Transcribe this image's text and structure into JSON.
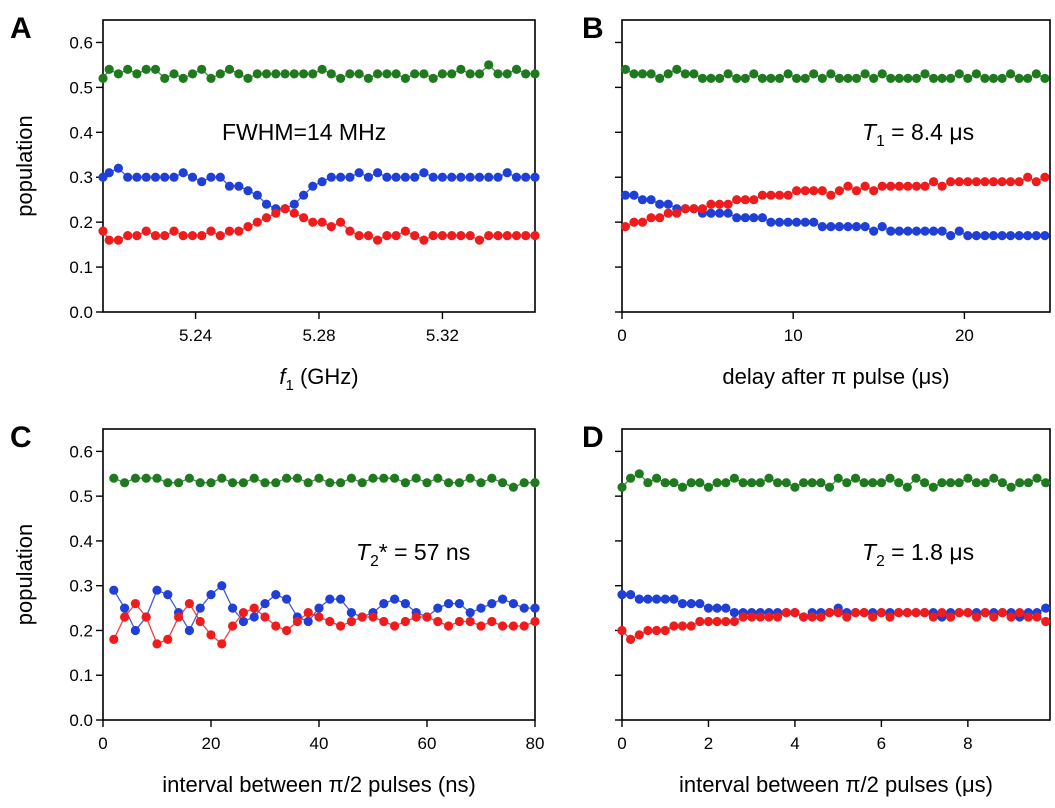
{
  "colors": {
    "green": "#1f7a1f",
    "blue": "#1f3fd6",
    "red": "#ee1c1c"
  },
  "chart_data": [
    {
      "type": "scatter",
      "panel_label": "A",
      "ylabel": "population",
      "xlabel_parts": [
        "f",
        "1",
        " (GHz)"
      ],
      "annotation_parts": [
        "FWHM=14 MHz"
      ],
      "xlim": [
        5.21,
        5.35
      ],
      "ylim": [
        0.0,
        0.65
      ],
      "xticks": [
        5.24,
        5.28,
        5.32
      ],
      "xtick_labels": [
        "5.24",
        "5.28",
        "5.32"
      ],
      "yticks": [
        0.0,
        0.1,
        0.2,
        0.3,
        0.4,
        0.5,
        0.6
      ],
      "ytick_labels": [
        "0.0",
        "0.1",
        "0.2",
        "0.3",
        "0.4",
        "0.5",
        "0.6"
      ],
      "show_y_tick_labels": true,
      "x": [
        5.21,
        5.212,
        5.215,
        5.218,
        5.221,
        5.224,
        5.227,
        5.23,
        5.233,
        5.236,
        5.239,
        5.242,
        5.245,
        5.248,
        5.251,
        5.254,
        5.257,
        5.26,
        5.263,
        5.266,
        5.269,
        5.272,
        5.275,
        5.278,
        5.281,
        5.284,
        5.287,
        5.29,
        5.293,
        5.296,
        5.299,
        5.302,
        5.305,
        5.308,
        5.311,
        5.314,
        5.317,
        5.32,
        5.323,
        5.326,
        5.329,
        5.332,
        5.335,
        5.338,
        5.341,
        5.344,
        5.347,
        5.35
      ],
      "series": [
        {
          "color_key": "green",
          "values": [
            0.52,
            0.54,
            0.53,
            0.54,
            0.53,
            0.54,
            0.54,
            0.52,
            0.53,
            0.52,
            0.53,
            0.54,
            0.52,
            0.53,
            0.54,
            0.53,
            0.52,
            0.53,
            0.53,
            0.53,
            0.53,
            0.53,
            0.53,
            0.53,
            0.54,
            0.53,
            0.52,
            0.53,
            0.53,
            0.52,
            0.53,
            0.53,
            0.53,
            0.52,
            0.53,
            0.53,
            0.52,
            0.53,
            0.53,
            0.54,
            0.53,
            0.53,
            0.55,
            0.53,
            0.53,
            0.54,
            0.53,
            0.53
          ]
        },
        {
          "color_key": "blue",
          "values": [
            0.3,
            0.31,
            0.32,
            0.3,
            0.3,
            0.3,
            0.3,
            0.3,
            0.3,
            0.31,
            0.3,
            0.29,
            0.3,
            0.3,
            0.28,
            0.28,
            0.27,
            0.26,
            0.24,
            0.23,
            0.23,
            0.24,
            0.26,
            0.28,
            0.29,
            0.3,
            0.3,
            0.3,
            0.31,
            0.3,
            0.31,
            0.3,
            0.3,
            0.3,
            0.3,
            0.31,
            0.3,
            0.3,
            0.3,
            0.3,
            0.3,
            0.3,
            0.3,
            0.3,
            0.31,
            0.3,
            0.3,
            0.3
          ]
        },
        {
          "color_key": "red",
          "values": [
            0.18,
            0.16,
            0.16,
            0.17,
            0.17,
            0.18,
            0.17,
            0.17,
            0.18,
            0.17,
            0.17,
            0.17,
            0.18,
            0.17,
            0.18,
            0.18,
            0.19,
            0.2,
            0.21,
            0.22,
            0.23,
            0.22,
            0.21,
            0.2,
            0.2,
            0.19,
            0.2,
            0.18,
            0.17,
            0.17,
            0.16,
            0.17,
            0.17,
            0.18,
            0.17,
            0.16,
            0.17,
            0.17,
            0.17,
            0.17,
            0.17,
            0.16,
            0.17,
            0.17,
            0.17,
            0.17,
            0.17,
            0.17
          ]
        }
      ]
    },
    {
      "type": "scatter",
      "panel_label": "B",
      "ylabel": "",
      "xlabel_parts": [
        "delay after π  pulse (μs)"
      ],
      "annotation_parts": [
        "T",
        "1",
        " = 8.4 μs"
      ],
      "xlim": [
        0,
        25
      ],
      "ylim": [
        0.0,
        0.65
      ],
      "xticks": [
        0,
        10,
        20
      ],
      "xtick_labels": [
        "0",
        "10",
        "20"
      ],
      "yticks": [
        0.0,
        0.1,
        0.2,
        0.3,
        0.4,
        0.5,
        0.6
      ],
      "ytick_labels": [],
      "show_y_tick_labels": false,
      "x": [
        0.2,
        0.7,
        1.2,
        1.7,
        2.2,
        2.7,
        3.2,
        3.7,
        4.2,
        4.7,
        5.2,
        5.7,
        6.2,
        6.7,
        7.2,
        7.7,
        8.2,
        8.7,
        9.2,
        9.7,
        10.2,
        10.7,
        11.2,
        11.7,
        12.2,
        12.7,
        13.2,
        13.7,
        14.2,
        14.7,
        15.2,
        15.7,
        16.2,
        16.7,
        17.2,
        17.7,
        18.2,
        18.7,
        19.2,
        19.7,
        20.2,
        20.7,
        21.2,
        21.7,
        22.2,
        22.7,
        23.2,
        23.7,
        24.2,
        24.7
      ],
      "series": [
        {
          "color_key": "green",
          "values": [
            0.54,
            0.53,
            0.53,
            0.53,
            0.52,
            0.53,
            0.54,
            0.53,
            0.53,
            0.52,
            0.52,
            0.52,
            0.53,
            0.52,
            0.52,
            0.53,
            0.52,
            0.52,
            0.52,
            0.53,
            0.52,
            0.52,
            0.53,
            0.52,
            0.53,
            0.52,
            0.52,
            0.52,
            0.53,
            0.52,
            0.53,
            0.52,
            0.52,
            0.52,
            0.52,
            0.53,
            0.52,
            0.52,
            0.52,
            0.53,
            0.52,
            0.53,
            0.52,
            0.52,
            0.52,
            0.53,
            0.52,
            0.52,
            0.53,
            0.52
          ]
        },
        {
          "color_key": "blue",
          "values": [
            0.26,
            0.26,
            0.25,
            0.25,
            0.24,
            0.24,
            0.23,
            0.23,
            0.23,
            0.22,
            0.22,
            0.22,
            0.22,
            0.21,
            0.21,
            0.21,
            0.21,
            0.2,
            0.2,
            0.2,
            0.2,
            0.2,
            0.2,
            0.19,
            0.19,
            0.19,
            0.19,
            0.19,
            0.19,
            0.18,
            0.19,
            0.18,
            0.18,
            0.18,
            0.18,
            0.18,
            0.18,
            0.18,
            0.17,
            0.18,
            0.17,
            0.17,
            0.17,
            0.17,
            0.17,
            0.17,
            0.17,
            0.17,
            0.17,
            0.17
          ]
        },
        {
          "color_key": "red",
          "values": [
            0.19,
            0.2,
            0.2,
            0.21,
            0.21,
            0.22,
            0.22,
            0.23,
            0.23,
            0.23,
            0.24,
            0.24,
            0.24,
            0.25,
            0.25,
            0.25,
            0.26,
            0.26,
            0.26,
            0.26,
            0.27,
            0.27,
            0.27,
            0.27,
            0.26,
            0.27,
            0.28,
            0.27,
            0.28,
            0.27,
            0.28,
            0.28,
            0.28,
            0.28,
            0.28,
            0.28,
            0.29,
            0.28,
            0.29,
            0.29,
            0.29,
            0.29,
            0.29,
            0.29,
            0.29,
            0.29,
            0.29,
            0.3,
            0.29,
            0.3
          ]
        }
      ]
    },
    {
      "type": "scatter",
      "panel_label": "C",
      "ylabel": "population",
      "xlabel_parts": [
        "interval between π/2 pulses (ns)"
      ],
      "annotation_parts": [
        "T",
        "2",
        "* = 57 ns"
      ],
      "xlim": [
        0,
        80
      ],
      "ylim": [
        0.0,
        0.65
      ],
      "xticks": [
        0,
        20,
        40,
        60,
        80
      ],
      "xtick_labels": [
        "0",
        "20",
        "40",
        "60",
        "80"
      ],
      "yticks": [
        0.0,
        0.1,
        0.2,
        0.3,
        0.4,
        0.5,
        0.6
      ],
      "ytick_labels": [
        "0.0",
        "0.1",
        "0.2",
        "0.3",
        "0.4",
        "0.5",
        "0.6"
      ],
      "show_y_tick_labels": true,
      "x": [
        2,
        4,
        6,
        8,
        10,
        12,
        14,
        16,
        18,
        20,
        22,
        24,
        26,
        28,
        30,
        32,
        34,
        36,
        38,
        40,
        42,
        44,
        46,
        48,
        50,
        52,
        54,
        56,
        58,
        60,
        62,
        64,
        66,
        68,
        70,
        72,
        74,
        76,
        78,
        80
      ],
      "series": [
        {
          "color_key": "green",
          "values": [
            0.54,
            0.53,
            0.54,
            0.54,
            0.54,
            0.53,
            0.53,
            0.54,
            0.53,
            0.53,
            0.54,
            0.53,
            0.53,
            0.54,
            0.53,
            0.53,
            0.54,
            0.54,
            0.53,
            0.54,
            0.53,
            0.53,
            0.54,
            0.53,
            0.54,
            0.54,
            0.54,
            0.53,
            0.54,
            0.53,
            0.54,
            0.53,
            0.53,
            0.54,
            0.53,
            0.54,
            0.53,
            0.52,
            0.53,
            0.53
          ]
        },
        {
          "color_key": "blue",
          "values": [
            0.29,
            0.25,
            0.2,
            0.23,
            0.29,
            0.28,
            0.24,
            0.2,
            0.25,
            0.28,
            0.3,
            0.25,
            0.22,
            0.23,
            0.26,
            0.28,
            0.27,
            0.23,
            0.22,
            0.25,
            0.27,
            0.27,
            0.24,
            0.23,
            0.24,
            0.26,
            0.27,
            0.26,
            0.24,
            0.23,
            0.25,
            0.26,
            0.26,
            0.24,
            0.25,
            0.26,
            0.27,
            0.26,
            0.25,
            0.25
          ]
        },
        {
          "color_key": "red",
          "values": [
            0.18,
            0.23,
            0.26,
            0.23,
            0.17,
            0.18,
            0.23,
            0.26,
            0.22,
            0.19,
            0.17,
            0.21,
            0.24,
            0.25,
            0.23,
            0.21,
            0.2,
            0.22,
            0.24,
            0.23,
            0.22,
            0.21,
            0.22,
            0.23,
            0.23,
            0.22,
            0.21,
            0.22,
            0.23,
            0.23,
            0.22,
            0.21,
            0.22,
            0.22,
            0.21,
            0.22,
            0.21,
            0.21,
            0.21,
            0.22
          ]
        }
      ]
    },
    {
      "type": "scatter",
      "panel_label": "D",
      "ylabel": "",
      "xlabel_parts": [
        "interval between π/2 pulses (μs)"
      ],
      "annotation_parts": [
        "T",
        "2",
        " = 1.8 μs"
      ],
      "xlim": [
        0,
        9.9
      ],
      "ylim": [
        0.0,
        0.65
      ],
      "xticks": [
        0,
        2,
        4,
        6,
        8
      ],
      "xtick_labels": [
        "0",
        "2",
        "4",
        "6",
        "8"
      ],
      "yticks": [
        0.0,
        0.1,
        0.2,
        0.3,
        0.4,
        0.5,
        0.6
      ],
      "ytick_labels": [],
      "show_y_tick_labels": false,
      "x": [
        0.0,
        0.2,
        0.4,
        0.6,
        0.8,
        1.0,
        1.2,
        1.4,
        1.6,
        1.8,
        2.0,
        2.2,
        2.4,
        2.6,
        2.8,
        3.0,
        3.2,
        3.4,
        3.6,
        3.8,
        4.0,
        4.2,
        4.4,
        4.6,
        4.8,
        5.0,
        5.2,
        5.4,
        5.6,
        5.8,
        6.0,
        6.2,
        6.4,
        6.6,
        6.8,
        7.0,
        7.2,
        7.4,
        7.6,
        7.8,
        8.0,
        8.2,
        8.4,
        8.6,
        8.8,
        9.0,
        9.2,
        9.4,
        9.6,
        9.8
      ],
      "series": [
        {
          "color_key": "green",
          "values": [
            0.52,
            0.54,
            0.55,
            0.53,
            0.54,
            0.53,
            0.53,
            0.52,
            0.53,
            0.53,
            0.52,
            0.53,
            0.53,
            0.54,
            0.53,
            0.53,
            0.53,
            0.54,
            0.53,
            0.53,
            0.52,
            0.53,
            0.53,
            0.53,
            0.52,
            0.54,
            0.53,
            0.54,
            0.53,
            0.53,
            0.53,
            0.54,
            0.53,
            0.52,
            0.54,
            0.53,
            0.52,
            0.53,
            0.53,
            0.53,
            0.54,
            0.53,
            0.53,
            0.54,
            0.53,
            0.52,
            0.53,
            0.53,
            0.54,
            0.53
          ]
        },
        {
          "color_key": "blue",
          "values": [
            0.28,
            0.28,
            0.27,
            0.27,
            0.27,
            0.27,
            0.27,
            0.26,
            0.26,
            0.26,
            0.25,
            0.25,
            0.25,
            0.24,
            0.24,
            0.24,
            0.24,
            0.24,
            0.24,
            0.24,
            0.24,
            0.23,
            0.24,
            0.24,
            0.24,
            0.25,
            0.24,
            0.24,
            0.24,
            0.24,
            0.24,
            0.24,
            0.24,
            0.24,
            0.24,
            0.24,
            0.24,
            0.23,
            0.24,
            0.24,
            0.24,
            0.24,
            0.24,
            0.24,
            0.24,
            0.24,
            0.23,
            0.24,
            0.24,
            0.25
          ]
        },
        {
          "color_key": "red",
          "values": [
            0.2,
            0.18,
            0.19,
            0.2,
            0.2,
            0.2,
            0.21,
            0.21,
            0.21,
            0.22,
            0.22,
            0.22,
            0.22,
            0.22,
            0.23,
            0.23,
            0.23,
            0.23,
            0.23,
            0.24,
            0.24,
            0.23,
            0.23,
            0.23,
            0.24,
            0.24,
            0.23,
            0.24,
            0.24,
            0.23,
            0.24,
            0.23,
            0.24,
            0.24,
            0.24,
            0.24,
            0.23,
            0.24,
            0.23,
            0.24,
            0.24,
            0.23,
            0.24,
            0.23,
            0.24,
            0.23,
            0.24,
            0.23,
            0.23,
            0.22
          ]
        }
      ]
    }
  ]
}
